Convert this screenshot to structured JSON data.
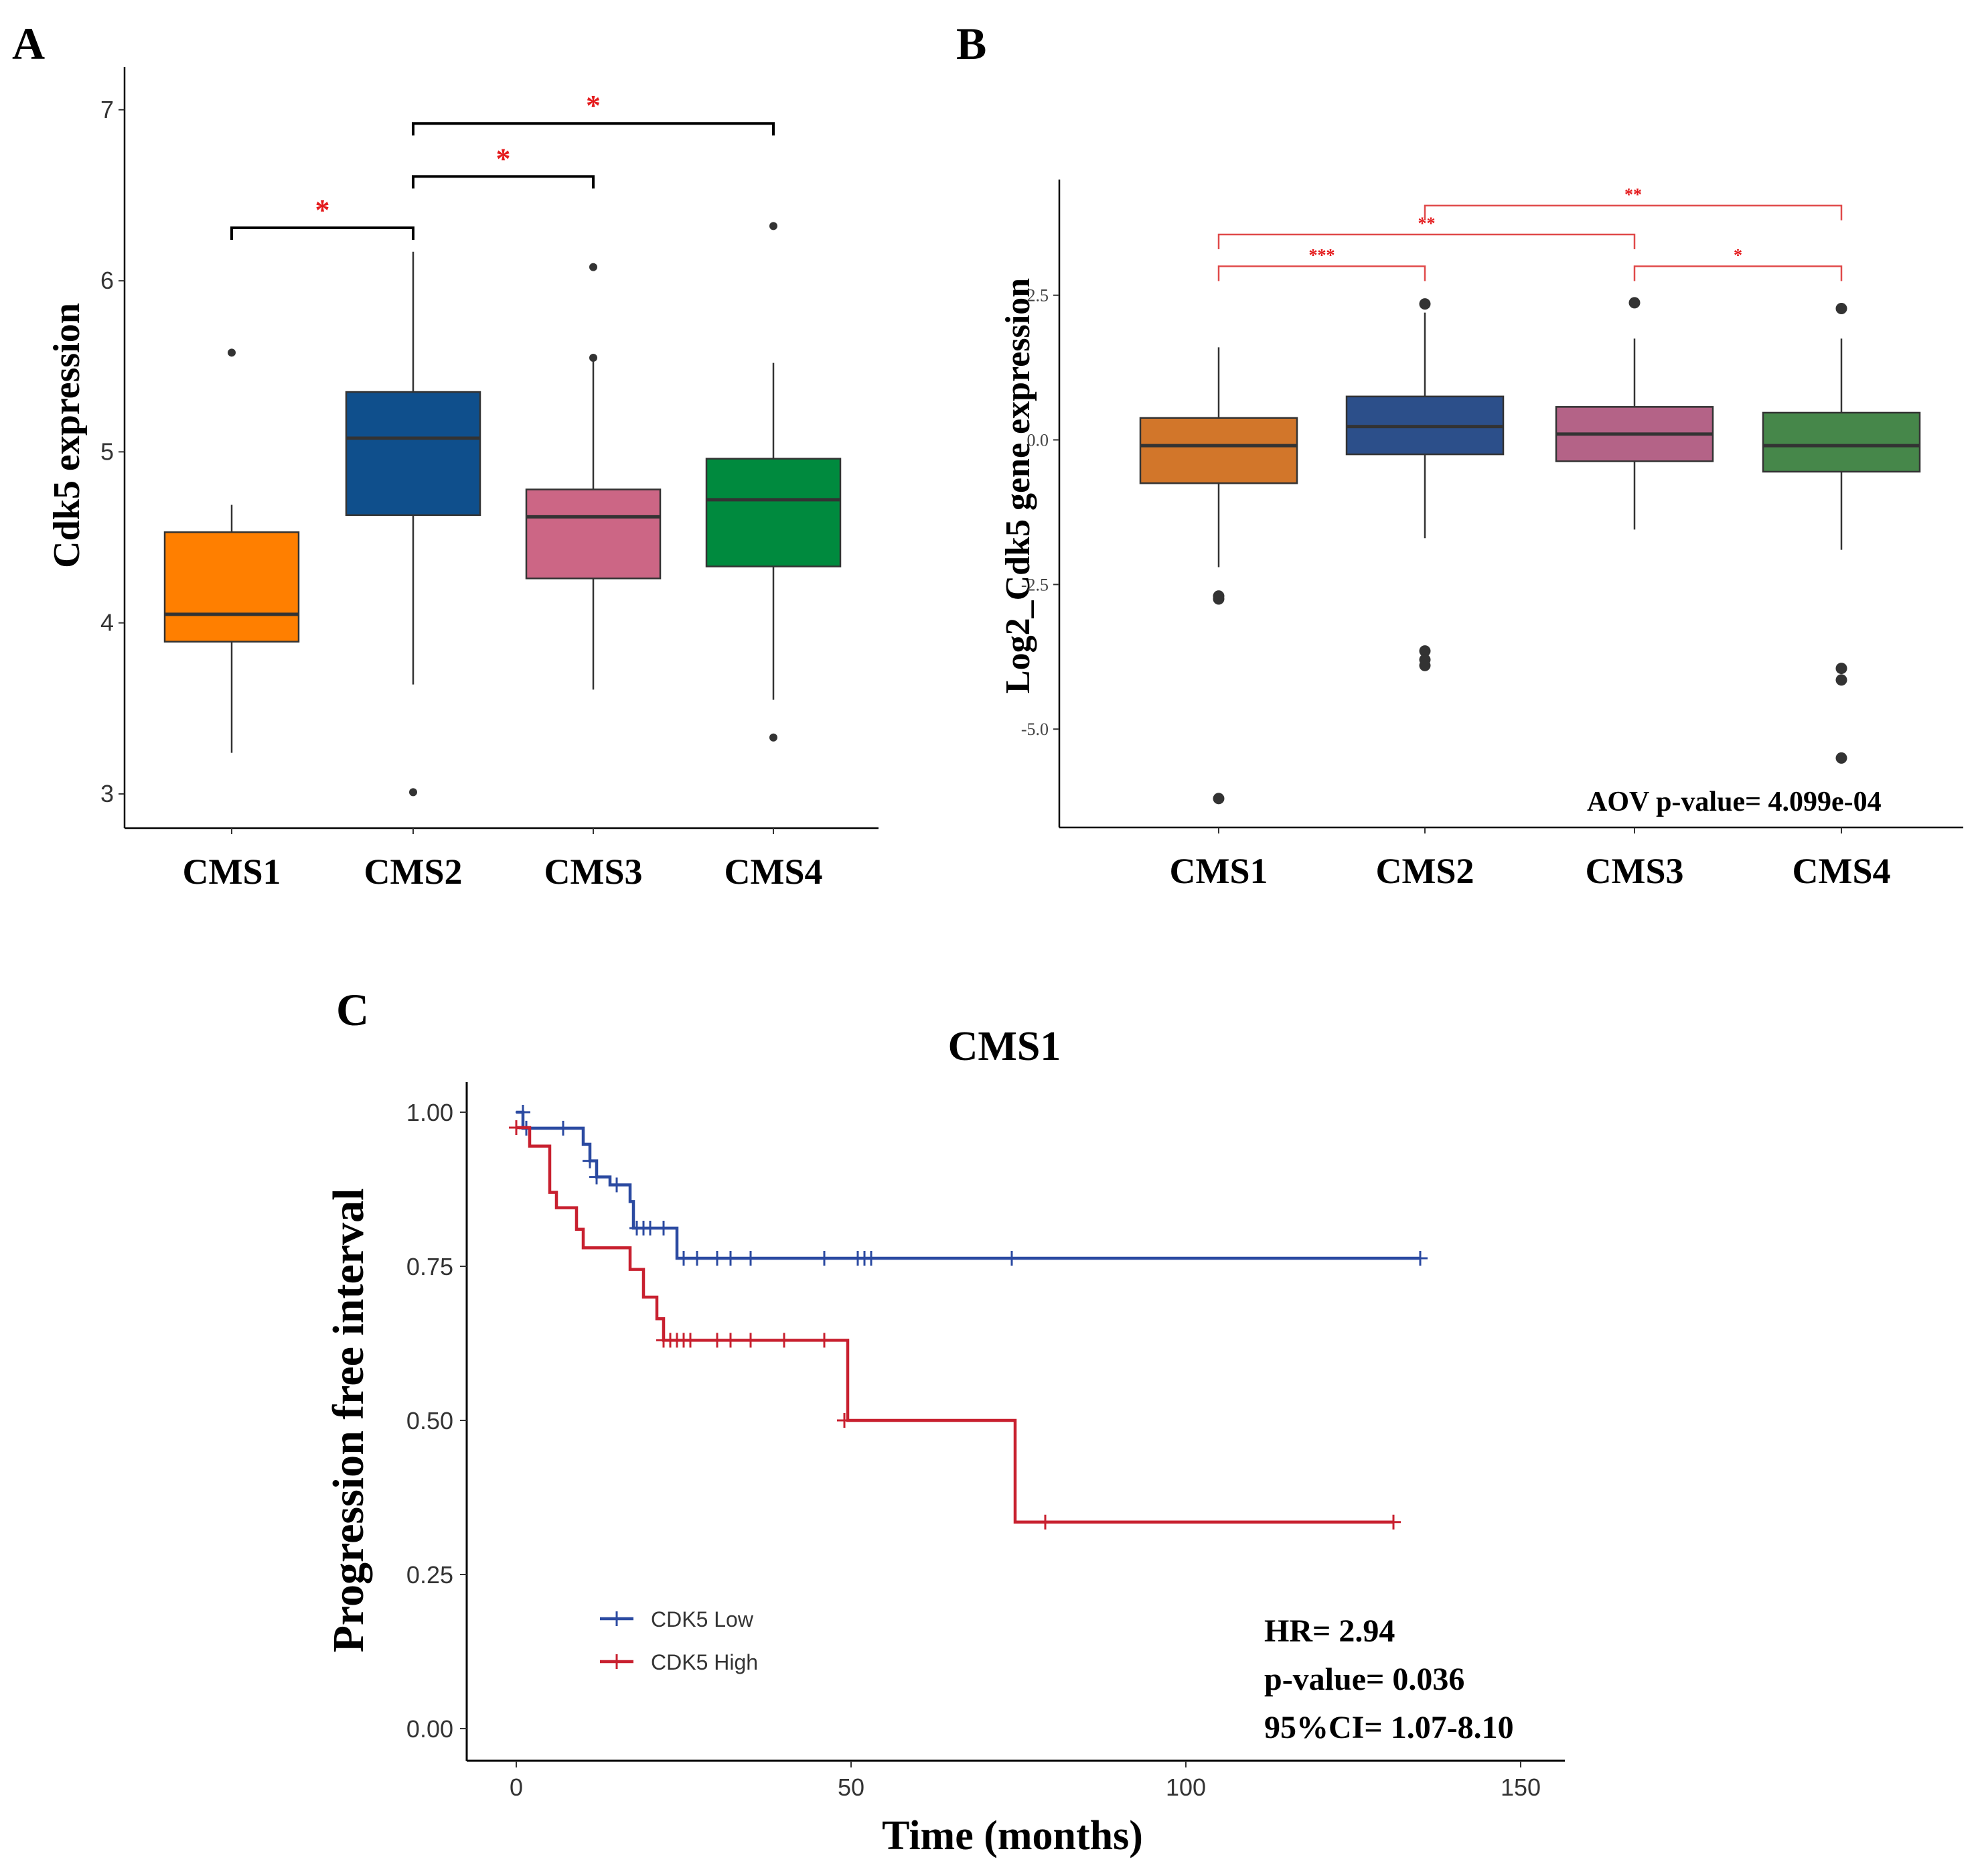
{
  "panels": {
    "a_label": "A",
    "b_label": "B",
    "c_label": "C"
  },
  "chart_data": [
    {
      "id": "A",
      "type": "box",
      "ylabel": "Cdk5 expression",
      "ylim": [
        2.8,
        7.25
      ],
      "yticks": [
        3,
        4,
        5,
        6,
        7
      ],
      "categories": [
        "CMS1",
        "CMS2",
        "CMS3",
        "CMS4"
      ],
      "colors": [
        "#ff7f00",
        "#0f4f8c",
        "#cc6685",
        "#008a3e"
      ],
      "boxes": [
        {
          "min": 3.24,
          "q1": 3.89,
          "median": 4.05,
          "q3": 4.53,
          "max": 4.69,
          "outliers": [
            5.58
          ]
        },
        {
          "min": 3.64,
          "q1": 4.63,
          "median": 5.08,
          "q3": 5.35,
          "max": 6.17,
          "outliers": [
            3.01
          ]
        },
        {
          "min": 3.61,
          "q1": 4.26,
          "median": 4.62,
          "q3": 4.78,
          "max": 5.55,
          "outliers": [
            5.55,
            6.08
          ]
        },
        {
          "min": 3.55,
          "q1": 4.33,
          "median": 4.72,
          "q3": 4.96,
          "max": 5.52,
          "outliers": [
            3.33,
            6.32
          ]
        }
      ],
      "comparisons": [
        {
          "from": 0,
          "to": 1,
          "y": 6.31,
          "label": "*"
        },
        {
          "from": 1,
          "to": 2,
          "y": 6.61,
          "label": "*"
        },
        {
          "from": 1,
          "to": 3,
          "y": 6.92,
          "label": "*"
        }
      ]
    },
    {
      "id": "B",
      "type": "box",
      "ylabel": "Log2_Cdk5 gene expression",
      "ylim": [
        -6.7,
        4.5
      ],
      "yticks": [
        -5.0,
        -2.5,
        0.0,
        2.5
      ],
      "ytick_labels": [
        "-5.0",
        "-2.5",
        "0.0",
        "2.5"
      ],
      "categories": [
        "CMS1",
        "CMS2",
        "CMS3",
        "CMS4"
      ],
      "colors": [
        "#d2762a",
        "#2c4f8a",
        "#b46387",
        "#46874a"
      ],
      "boxes": [
        {
          "min": -2.2,
          "q1": -0.75,
          "median": -0.1,
          "q3": 0.38,
          "max": 1.6,
          "outliers": [
            -2.7,
            -2.75,
            -6.2
          ]
        },
        {
          "min": -1.7,
          "q1": -0.25,
          "median": 0.23,
          "q3": 0.75,
          "max": 2.2,
          "outliers": [
            2.35,
            -3.65,
            -3.8,
            -3.9
          ]
        },
        {
          "min": -1.55,
          "q1": -0.37,
          "median": 0.1,
          "q3": 0.57,
          "max": 1.75,
          "outliers": [
            2.37
          ]
        },
        {
          "min": -1.9,
          "q1": -0.55,
          "median": -0.1,
          "q3": 0.47,
          "max": 1.75,
          "outliers": [
            2.27,
            -3.95,
            -4.15,
            -5.5
          ]
        }
      ],
      "comparisons": [
        {
          "from": 0,
          "to": 1,
          "y": 3.0,
          "label": "***"
        },
        {
          "from": 2,
          "to": 3,
          "y": 3.0,
          "label": "*"
        },
        {
          "from": 0,
          "to": 2,
          "y": 3.55,
          "label": "**"
        },
        {
          "from": 1,
          "to": 3,
          "y": 4.05,
          "label": "**"
        }
      ],
      "annotation": "AOV p-value= 4.099e-04"
    },
    {
      "id": "C",
      "type": "line",
      "subtype": "kaplan-meier",
      "title": "CMS1",
      "xlabel": "Time (months)",
      "ylabel": "Progression free interval",
      "xlim": [
        -7,
        157
      ],
      "ylim": [
        -0.02,
        1.05
      ],
      "xticks": [
        0,
        50,
        100,
        150
      ],
      "yticks": [
        0.0,
        0.25,
        0.5,
        0.75,
        1.0
      ],
      "ytick_labels": [
        "0.00",
        "0.25",
        "0.50",
        "0.75",
        "1.00"
      ],
      "series": [
        {
          "name": "CDK5 Low",
          "color": "#2b4aa1",
          "steps": [
            [
              0,
              1.0
            ],
            [
              1,
              0.974
            ],
            [
              10,
              0.948
            ],
            [
              11,
              0.921
            ],
            [
              12,
              0.895
            ],
            [
              14,
              0.882
            ],
            [
              17,
              0.855
            ],
            [
              17.5,
              0.812
            ],
            [
              24,
              0.763
            ],
            [
              135,
              0.763
            ]
          ],
          "censors": [
            [
              1,
              1.0
            ],
            [
              1.5,
              0.974
            ],
            [
              7,
              0.974
            ],
            [
              11,
              0.921
            ],
            [
              12,
              0.895
            ],
            [
              15,
              0.882
            ],
            [
              18,
              0.812
            ],
            [
              19,
              0.812
            ],
            [
              20,
              0.812
            ],
            [
              22,
              0.812
            ],
            [
              25,
              0.763
            ],
            [
              27,
              0.763
            ],
            [
              30,
              0.763
            ],
            [
              32,
              0.763
            ],
            [
              35,
              0.763
            ],
            [
              46,
              0.763
            ],
            [
              51,
              0.763
            ],
            [
              52,
              0.763
            ],
            [
              53,
              0.763
            ],
            [
              74,
              0.763
            ],
            [
              135,
              0.763
            ]
          ]
        },
        {
          "name": "CDK5 High",
          "color": "#c8202f",
          "steps": [
            [
              0,
              0.975
            ],
            [
              2,
              0.945
            ],
            [
              5,
              0.87
            ],
            [
              6,
              0.845
            ],
            [
              9,
              0.81
            ],
            [
              10,
              0.78
            ],
            [
              17,
              0.745
            ],
            [
              19,
              0.7
            ],
            [
              21,
              0.665
            ],
            [
              22,
              0.63
            ],
            [
              49,
              0.63
            ],
            [
              49.5,
              0.5
            ],
            [
              74,
              0.5
            ],
            [
              74.5,
              0.335
            ],
            [
              131,
              0.335
            ]
          ],
          "censors": [
            [
              0,
              0.975
            ],
            [
              22,
              0.63
            ],
            [
              23,
              0.63
            ],
            [
              24,
              0.63
            ],
            [
              25,
              0.63
            ],
            [
              26,
              0.63
            ],
            [
              30,
              0.63
            ],
            [
              32,
              0.63
            ],
            [
              35,
              0.63
            ],
            [
              40,
              0.63
            ],
            [
              46,
              0.63
            ],
            [
              49,
              0.5
            ],
            [
              79,
              0.335
            ],
            [
              131,
              0.335
            ]
          ]
        }
      ],
      "annotations": [
        "HR= 2.94",
        "p-value= 0.036",
        "95%CI= 1.07-8.10"
      ]
    }
  ]
}
